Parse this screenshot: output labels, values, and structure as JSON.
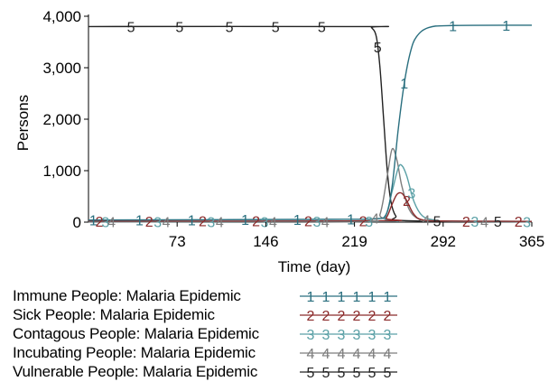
{
  "chart_data": {
    "type": "line",
    "ylabel": "Persons",
    "xlabel": "Time (day)",
    "xlim": [
      0,
      365
    ],
    "ylim": [
      0,
      4000
    ],
    "xticks": [
      {
        "value": 73,
        "label": "73"
      },
      {
        "value": 146,
        "label": "146"
      },
      {
        "value": 219,
        "label": "219"
      },
      {
        "value": 292,
        "label": "292"
      },
      {
        "value": 365,
        "label": "365"
      }
    ],
    "yticks": [
      {
        "value": 0,
        "label": "0"
      },
      {
        "value": 1000,
        "label": "1,000"
      },
      {
        "value": 2000,
        "label": "2,000"
      },
      {
        "value": 3000,
        "label": "3,000"
      },
      {
        "value": 4000,
        "label": "4,000"
      }
    ],
    "series": [
      {
        "id": "1",
        "name": "Immune People: Malaria Epidemic",
        "color": "#2a6f7f",
        "points": [
          [
            0,
            40
          ],
          [
            200,
            55
          ],
          [
            235,
            65
          ],
          [
            245,
            150
          ],
          [
            250,
            700
          ],
          [
            255,
            1800
          ],
          [
            260,
            2700
          ],
          [
            265,
            3300
          ],
          [
            270,
            3600
          ],
          [
            280,
            3780
          ],
          [
            300,
            3820
          ],
          [
            365,
            3825
          ]
        ],
        "marker_days": [
          4,
          42,
          85,
          129,
          172,
          216,
          260,
          300,
          344
        ]
      },
      {
        "id": "2",
        "name": "Sick People: Malaria Epidemic",
        "color": "#8b2a2a",
        "points": [
          [
            0,
            20
          ],
          [
            238,
            25
          ],
          [
            245,
            80
          ],
          [
            250,
            350
          ],
          [
            254,
            540
          ],
          [
            258,
            560
          ],
          [
            262,
            420
          ],
          [
            268,
            150
          ],
          [
            276,
            40
          ],
          [
            300,
            20
          ],
          [
            365,
            15
          ]
        ],
        "marker_days": [
          9,
          50,
          94,
          138,
          181,
          226,
          262,
          311,
          354
        ]
      },
      {
        "id": "3",
        "name": "Contagous People: Malaria Epidemic",
        "color": "#5aa0a6",
        "points": [
          [
            0,
            10
          ],
          [
            235,
            15
          ],
          [
            244,
            80
          ],
          [
            250,
            600
          ],
          [
            255,
            1050
          ],
          [
            258,
            1100
          ],
          [
            262,
            900
          ],
          [
            268,
            400
          ],
          [
            275,
            120
          ],
          [
            285,
            40
          ],
          [
            300,
            15
          ],
          [
            365,
            10
          ]
        ],
        "marker_days": [
          14,
          57,
          101,
          145,
          188,
          231,
          266,
          318,
          361
        ]
      },
      {
        "id": "4",
        "name": "Incubating People: Malaria Epidemic",
        "color": "#7d7d7d",
        "points": [
          [
            0,
            5
          ],
          [
            232,
            10
          ],
          [
            240,
            150
          ],
          [
            246,
            900
          ],
          [
            250,
            1420
          ],
          [
            254,
            1200
          ],
          [
            258,
            700
          ],
          [
            264,
            250
          ],
          [
            272,
            60
          ],
          [
            285,
            20
          ],
          [
            365,
            5
          ]
        ],
        "marker_days": [
          19,
          64,
          108,
          152,
          195,
          236,
          278,
          326
        ]
      },
      {
        "id": "5",
        "name": "Vulnerable People: Malaria Epidemic",
        "color": "#222222",
        "points": [
          [
            0,
            3800
          ],
          [
            229,
            3800
          ],
          [
            233,
            3780
          ],
          [
            237,
            3600
          ],
          [
            240,
            3000
          ],
          [
            243,
            2000
          ],
          [
            246,
            1000
          ],
          [
            249,
            400
          ],
          [
            253,
            120
          ],
          [
            260,
            30
          ],
          [
            365,
            15
          ]
        ],
        "marker_days": [
          35,
          75,
          116,
          154,
          192,
          238,
          287,
          337
        ]
      }
    ]
  }
}
